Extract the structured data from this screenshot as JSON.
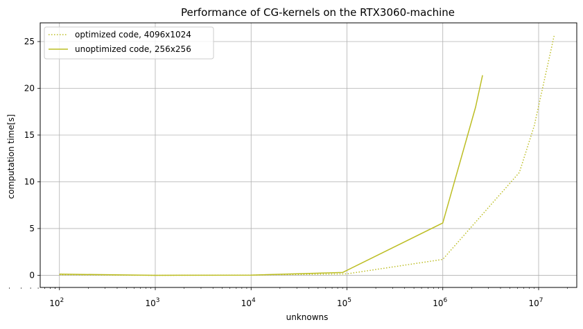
{
  "chart_data": {
    "type": "line",
    "title": "Performance of CG-kernels on the RTX3060-machine",
    "xlabel": "unknowns",
    "ylabel": "computation time[s]",
    "xscale": "log",
    "xlim": [
      63,
      25000000
    ],
    "ylim": [
      -1.3,
      27
    ],
    "xticks": [
      {
        "value": 100,
        "base": "10",
        "exp": "2"
      },
      {
        "value": 1000,
        "base": "10",
        "exp": "3"
      },
      {
        "value": 10000,
        "base": "10",
        "exp": "4"
      },
      {
        "value": 100000,
        "base": "10",
        "exp": "5"
      },
      {
        "value": 1000000,
        "base": "10",
        "exp": "6"
      },
      {
        "value": 10000000,
        "base": "10",
        "exp": "7"
      }
    ],
    "yticks": [
      {
        "value": 0,
        "label": "0"
      },
      {
        "value": 5,
        "label": "5"
      },
      {
        "value": 10,
        "label": "10"
      },
      {
        "value": 15,
        "label": "15"
      },
      {
        "value": 20,
        "label": "20"
      },
      {
        "value": 25,
        "label": "25"
      }
    ],
    "grid": true,
    "legend_position": "top-left",
    "series": [
      {
        "name": "optimized code, 4096x1024",
        "color": "#bcbd22",
        "style": "dotted",
        "x": [
          100,
          1000,
          10000,
          100000,
          1000000,
          6300000,
          9000000,
          14500000
        ],
        "y": [
          0.05,
          0.0,
          0.02,
          0.15,
          1.7,
          11.0,
          16.0,
          25.6
        ]
      },
      {
        "name": "unoptimized code, 256x256",
        "color": "#bcbd22",
        "style": "solid",
        "x": [
          100,
          1000,
          10000,
          90000,
          1000000,
          2200000,
          2600000
        ],
        "y": [
          0.12,
          0.0,
          0.02,
          0.3,
          5.6,
          18.0,
          21.4
        ]
      }
    ]
  }
}
